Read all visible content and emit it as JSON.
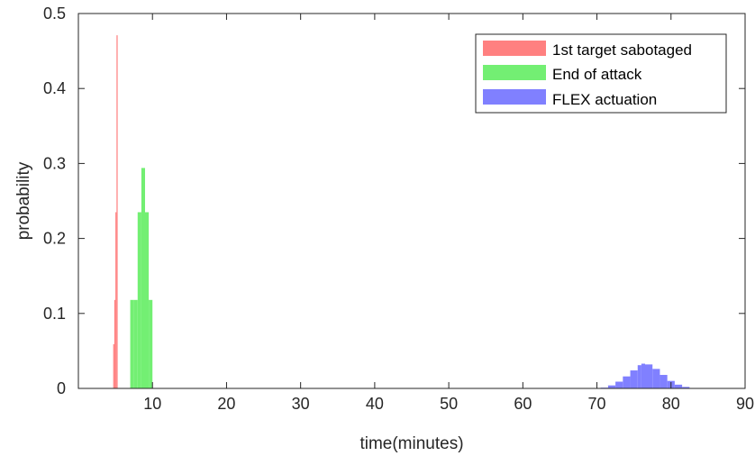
{
  "chart_data": {
    "type": "bar",
    "title": "",
    "xlabel": "time(minutes)",
    "ylabel": "probability",
    "xlim": [
      0,
      90
    ],
    "ylim": [
      0,
      0.5
    ],
    "xticks": [
      10,
      20,
      30,
      40,
      50,
      60,
      70,
      80,
      90
    ],
    "yticks": [
      0,
      0.1,
      0.2,
      0.3,
      0.4,
      0.5
    ],
    "xtick_labels": [
      "10",
      "20",
      "30",
      "40",
      "50",
      "60",
      "70",
      "80",
      "90"
    ],
    "ytick_labels": [
      "0",
      "0.1",
      "0.2",
      "0.3",
      "0.4",
      "0.5"
    ],
    "grid": false,
    "legend_position": "top-right",
    "series": [
      {
        "name": "1st target sabotaged",
        "color": "#ff8080",
        "points": [
          {
            "x": 4.7,
            "y": 0.059
          },
          {
            "x": 4.85,
            "y": 0.118
          },
          {
            "x": 5.0,
            "y": 0.235
          },
          {
            "x": 5.15,
            "y": 0.471
          },
          {
            "x": 5.3,
            "y": 0.0
          }
        ]
      },
      {
        "name": "End of attack",
        "color": "#73ef73",
        "points": [
          {
            "x": 7.0,
            "y": 0.118
          },
          {
            "x": 7.5,
            "y": 0.118
          },
          {
            "x": 8.0,
            "y": 0.235
          },
          {
            "x": 8.5,
            "y": 0.294
          },
          {
            "x": 9.0,
            "y": 0.235
          },
          {
            "x": 9.5,
            "y": 0.118
          }
        ]
      },
      {
        "name": "FLEX actuation",
        "color": "#8080ff",
        "points": [
          {
            "x": 70.5,
            "y": 0.001
          },
          {
            "x": 71.5,
            "y": 0.004
          },
          {
            "x": 72.5,
            "y": 0.009
          },
          {
            "x": 73.5,
            "y": 0.016
          },
          {
            "x": 74.5,
            "y": 0.024
          },
          {
            "x": 75.5,
            "y": 0.031
          },
          {
            "x": 76.0,
            "y": 0.033
          },
          {
            "x": 76.5,
            "y": 0.032
          },
          {
            "x": 77.5,
            "y": 0.026
          },
          {
            "x": 78.5,
            "y": 0.018
          },
          {
            "x": 79.5,
            "y": 0.01
          },
          {
            "x": 80.5,
            "y": 0.005
          },
          {
            "x": 81.5,
            "y": 0.002
          },
          {
            "x": 82.5,
            "y": 0.0005
          }
        ]
      }
    ]
  }
}
